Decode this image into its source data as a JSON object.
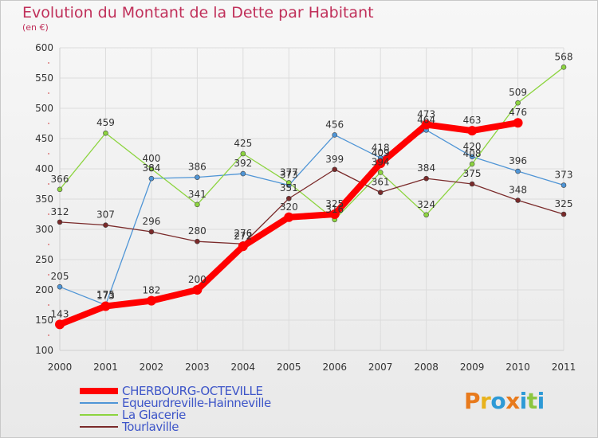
{
  "title": "Evolution du Montant de la Dette par Habitant",
  "subtitle": "(en €)",
  "logo": {
    "text": "Proxiti",
    "colors": [
      "#e87a1c",
      "#e8b21c",
      "#2e9ad6",
      "#e87a1c",
      "#2e9ad6",
      "#8cc63f",
      "#2e9ad6"
    ]
  },
  "chart_data": {
    "type": "line",
    "title": "Evolution du Montant de la Dette par Habitant",
    "subtitle": "(en €)",
    "x": [
      "2000",
      "2001",
      "2002",
      "2003",
      "2004",
      "2005",
      "2006",
      "2007",
      "2008",
      "2009",
      "2010",
      "2011"
    ],
    "ylim": [
      100,
      600
    ],
    "yticks": [
      100,
      150,
      200,
      250,
      300,
      350,
      400,
      450,
      500,
      550,
      600
    ],
    "grid": true,
    "legend_position": "bottom-left",
    "series": [
      {
        "name": "CHERBOURG-OCTEVILLE",
        "color": "#ff0000",
        "values": [
          143,
          173,
          182,
          200,
          272,
          320,
          325,
          409,
          473,
          463,
          476,
          null
        ],
        "labels": [
          "143",
          "173",
          "182",
          "200",
          "272",
          "320",
          "325",
          "409",
          "473",
          "463",
          "476",
          ""
        ]
      },
      {
        "name": "Equeurdreville-Hainneville",
        "color": "#4f95d6",
        "values": [
          205,
          175,
          384,
          386,
          392,
          373,
          456,
          418,
          464,
          420,
          396,
          373
        ],
        "labels": [
          "205",
          "175",
          "384",
          "386",
          "392",
          "373",
          "456",
          "418",
          "464",
          "420",
          "396",
          "373"
        ]
      },
      {
        "name": "La Glacerie",
        "color": "#8cd43f",
        "values": [
          366,
          459,
          400,
          341,
          425,
          377,
          316,
          394,
          324,
          408,
          509,
          568
        ],
        "labels": [
          "366",
          "459",
          "400",
          "341",
          "425",
          "377",
          "316",
          "394",
          "324",
          "408",
          "509",
          "568"
        ]
      },
      {
        "name": "Tourlaville",
        "color": "#7a2a2a",
        "values": [
          312,
          307,
          296,
          280,
          276,
          351,
          399,
          361,
          384,
          375,
          348,
          325
        ],
        "labels": [
          "312",
          "307",
          "296",
          "280",
          "276",
          "351",
          "399",
          "361",
          "384",
          "375",
          "348",
          "325"
        ]
      }
    ]
  }
}
